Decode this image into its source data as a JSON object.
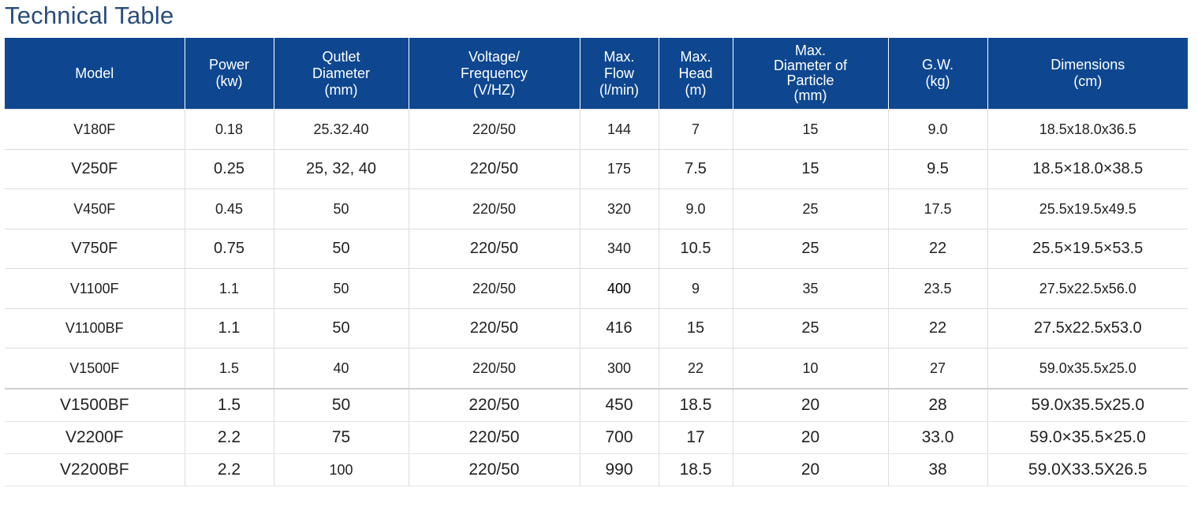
{
  "title": "Technical Table",
  "columns": {
    "model": "Model",
    "power_1": "Power",
    "power_2": "(kw)",
    "outlet_1": "Qutlet",
    "outlet_2": "Diameter",
    "outlet_3": "(mm)",
    "voltage_1": "Voltage/",
    "voltage_2": "Frequency",
    "voltage_3": "(V/HZ)",
    "flow_1": "Max.",
    "flow_2": "Flow",
    "flow_3": "(l/min)",
    "head_1": "Max.",
    "head_2": "Head",
    "head_3": "(m)",
    "particle_1": "Max.",
    "particle_2": "Diameter of",
    "particle_3": "Particle",
    "particle_4": "(mm)",
    "gw_1": "G.W.",
    "gw_2": "(kg)",
    "dim_1": "Dimensions",
    "dim_2": "(cm)"
  },
  "rows": [
    {
      "model": "V180F",
      "power": "0.18",
      "outlet": "25.32.40",
      "voltage": "220/50",
      "flow": "144",
      "head": "7",
      "particle": "15",
      "gw": "9.0",
      "dimensions": "18.5x18.0x36.5"
    },
    {
      "model": "V250F",
      "power": "0.25",
      "outlet": "25, 32, 40",
      "voltage": "220/50",
      "flow": "175",
      "head": "7.5",
      "particle": "15",
      "gw": "9.5",
      "dimensions": "18.5×18.0×38.5"
    },
    {
      "model": "V450F",
      "power": "0.45",
      "outlet": "50",
      "voltage": "220/50",
      "flow": "320",
      "head": "9.0",
      "particle": "25",
      "gw": "17.5",
      "dimensions": "25.5x19.5x49.5"
    },
    {
      "model": "V750F",
      "power": "0.75",
      "outlet": "50",
      "voltage": "220/50",
      "flow": "340",
      "head": "10.5",
      "particle": "25",
      "gw": "22",
      "dimensions": "25.5×19.5×53.5"
    },
    {
      "model": "V1100F",
      "power": "1.1",
      "outlet": "50",
      "voltage": "220/50",
      "flow": "400",
      "head": "9",
      "particle": "35",
      "gw": "23.5",
      "dimensions": "27.5x22.5x56.0"
    },
    {
      "model": "V1100BF",
      "power": "1.1",
      "outlet": "50",
      "voltage": "220/50",
      "flow": "416",
      "head": "15",
      "particle": "25",
      "gw": "22",
      "dimensions": "27.5x22.5x53.0"
    },
    {
      "model": "V1500F",
      "power": "1.5",
      "outlet": "40",
      "voltage": "220/50",
      "flow": "300",
      "head": "22",
      "particle": "10",
      "gw": "27",
      "dimensions": "59.0x35.5x25.0"
    },
    {
      "model": "V1500BF",
      "power": "1.5",
      "outlet": "50",
      "voltage": "220/50",
      "flow": "450",
      "head": "18.5",
      "particle": "20",
      "gw": "28",
      "dimensions": "59.0x35.5x25.0"
    },
    {
      "model": "V2200F",
      "power": "2.2",
      "outlet": "75",
      "voltage": "220/50",
      "flow": "700",
      "head": "17",
      "particle": "20",
      "gw": "33.0",
      "dimensions": "59.0×35.5×25.0"
    },
    {
      "model": "V2200BF",
      "power": "2.2",
      "outlet": "100",
      "voltage": "220/50",
      "flow": "990",
      "head": "18.5",
      "particle": "20",
      "gw": "38",
      "dimensions": "59.0X33.5X26.5"
    }
  ],
  "colors": {
    "header_bg": "#0e4790",
    "title": "#2a4d7a"
  }
}
